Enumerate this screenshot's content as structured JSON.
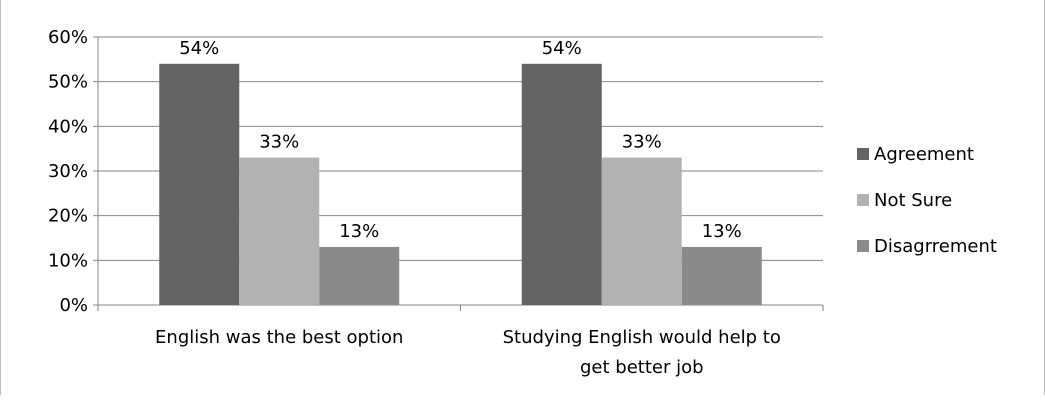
{
  "chart_data": {
    "type": "bar",
    "categories": [
      "English was the best option",
      "Studying English would help to get better job"
    ],
    "category_lines": [
      [
        "English was the best option"
      ],
      [
        "Studying English would help to",
        "get better job"
      ]
    ],
    "series": [
      {
        "name": "Agreement",
        "values": [
          54,
          54
        ],
        "labels": [
          "54%",
          "54%"
        ],
        "color": "#646464"
      },
      {
        "name": "Not Sure",
        "values": [
          33,
          33
        ],
        "labels": [
          "33%",
          "33%"
        ],
        "color": "#b2b2b2"
      },
      {
        "name": "Disagrrement",
        "values": [
          13,
          13
        ],
        "labels": [
          "13%",
          "13%"
        ],
        "color": "#8a8a8a"
      }
    ],
    "yticks": [
      "0%",
      "10%",
      "20%",
      "30%",
      "40%",
      "50%",
      "60%"
    ],
    "ylim": [
      0,
      60
    ],
    "grid": true,
    "legend_position": "right",
    "title": "",
    "xlabel": "",
    "ylabel": ""
  }
}
